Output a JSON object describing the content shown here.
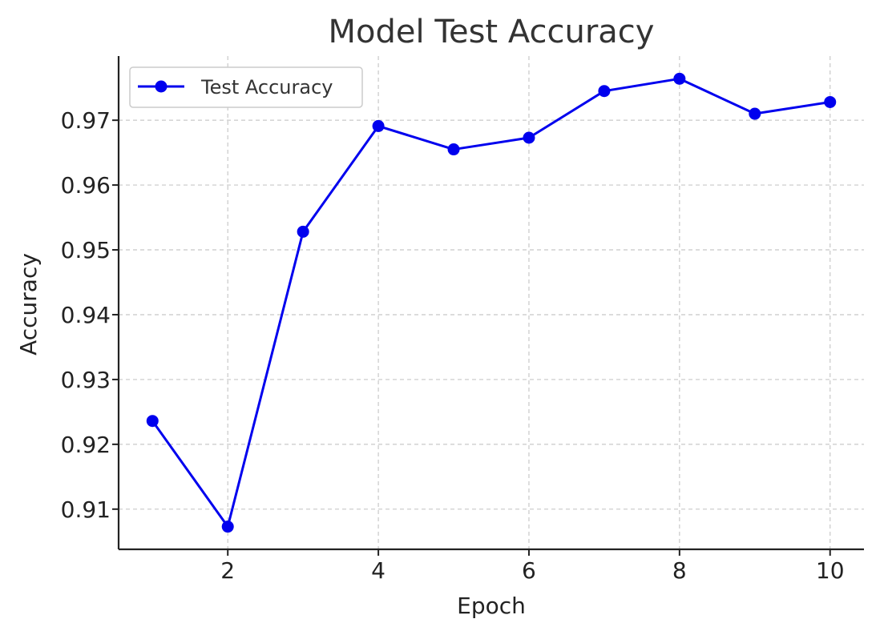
{
  "chart_data": {
    "type": "line",
    "title": "Model Test Accuracy",
    "xlabel": "Epoch",
    "ylabel": "Accuracy",
    "x": [
      1,
      2,
      3,
      4,
      5,
      6,
      7,
      8,
      9,
      10
    ],
    "series": [
      {
        "name": "Test Accuracy",
        "color": "#0000ee",
        "marker": "circle",
        "values": [
          0.9236,
          0.9073,
          0.9528,
          0.9691,
          0.9655,
          0.9673,
          0.9745,
          0.9764,
          0.971,
          0.9728
        ]
      }
    ],
    "xlim": [
      0.55,
      10.45
    ],
    "ylim": [
      0.9038,
      0.9799
    ],
    "xticks": [
      2,
      4,
      6,
      8,
      10
    ],
    "xtick_labels": [
      "2",
      "4",
      "6",
      "8",
      "10"
    ],
    "yticks": [
      0.91,
      0.92,
      0.93,
      0.94,
      0.95,
      0.96,
      0.97
    ],
    "ytick_labels": [
      "0.91",
      "0.92",
      "0.93",
      "0.94",
      "0.95",
      "0.96",
      "0.97"
    ],
    "grid": true,
    "legend_position": "top-left"
  }
}
